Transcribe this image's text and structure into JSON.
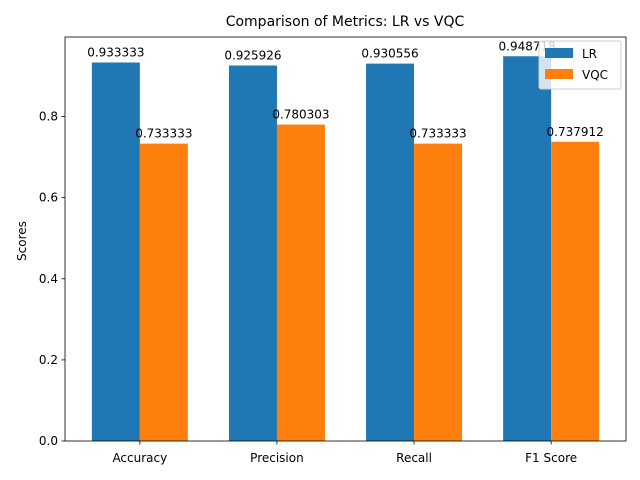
{
  "chart_data": {
    "type": "bar",
    "title": "Comparison of Metrics: LR vs VQC",
    "xlabel": "",
    "ylabel": "Scores",
    "categories": [
      "Accuracy",
      "Precision",
      "Recall",
      "F1 Score"
    ],
    "series": [
      {
        "name": "LR",
        "color": "#1f77b4",
        "values": [
          0.933333,
          0.925926,
          0.930556,
          0.948718
        ],
        "labels": [
          "0.933333",
          "0.925926",
          "0.930556",
          "0.948718"
        ]
      },
      {
        "name": "VQC",
        "color": "#ff7f0e",
        "values": [
          0.733333,
          0.780303,
          0.733333,
          0.737912
        ],
        "labels": [
          "0.733333",
          "0.780303",
          "0.733333",
          "0.737912"
        ]
      }
    ],
    "ylim": [
      0,
      0.9962
    ],
    "yticks": [
      0.0,
      0.2,
      0.4,
      0.6,
      0.8
    ],
    "ytick_labels": [
      "0.0",
      "0.2",
      "0.4",
      "0.6",
      "0.8"
    ],
    "grid": false,
    "legend_position": "top-right"
  }
}
